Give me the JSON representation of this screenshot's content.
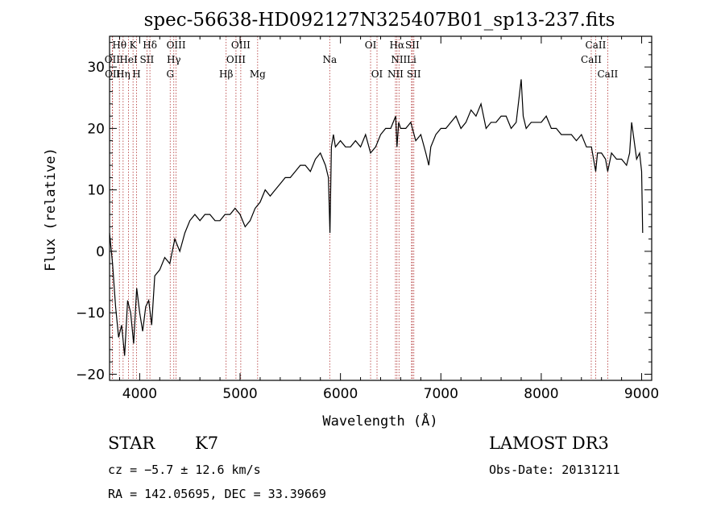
{
  "chart_data": {
    "type": "line",
    "title": "spec-56638-HD092127N325407B01_sp13-237.fits",
    "xlabel": "Wavelength (Å)",
    "ylabel": "Flux (relative)",
    "xlim": [
      3700,
      9100
    ],
    "ylim": [
      -21,
      35
    ],
    "xticks": [
      4000,
      5000,
      6000,
      7000,
      8000,
      9000
    ],
    "yticks": [
      -20,
      -10,
      0,
      10,
      20,
      30
    ],
    "xtick_labels": [
      "4000",
      "5000",
      "6000",
      "7000",
      "8000",
      "9000"
    ],
    "ytick_labels": [
      "−20",
      "−10",
      "0",
      "10",
      "20",
      "30"
    ],
    "series": [
      {
        "x": [
          3700,
          3730,
          3760,
          3790,
          3820,
          3850,
          3880,
          3910,
          3940,
          3970,
          4000,
          4030,
          4060,
          4090,
          4120,
          4150,
          4200,
          4250,
          4300,
          4350,
          4400,
          4450,
          4500,
          4550,
          4600,
          4650,
          4700,
          4750,
          4800,
          4850,
          4900,
          4950,
          5000,
          5050,
          5100,
          5150,
          5200,
          5250,
          5300,
          5350,
          5400,
          5450,
          5500,
          5550,
          5600,
          5650,
          5700,
          5750,
          5800,
          5850,
          5880,
          5895,
          5910,
          5930,
          5950,
          6000,
          6050,
          6100,
          6150,
          6200,
          6250,
          6300,
          6350,
          6400,
          6450,
          6500,
          6550,
          6563,
          6580,
          6600,
          6650,
          6700,
          6750,
          6800,
          6850,
          6880,
          6900,
          6950,
          7000,
          7050,
          7100,
          7150,
          7200,
          7250,
          7300,
          7350,
          7400,
          7450,
          7500,
          7550,
          7600,
          7650,
          7700,
          7750,
          7800,
          7820,
          7850,
          7900,
          7950,
          8000,
          8050,
          8100,
          8150,
          8200,
          8250,
          8300,
          8350,
          8400,
          8450,
          8500,
          8542,
          8560,
          8600,
          8640,
          8662,
          8700,
          8750,
          8800,
          8850,
          8880,
          8900,
          8950,
          8980,
          9000,
          9010
        ],
        "y": [
          3,
          -2,
          -9,
          -14,
          -12,
          -17,
          -8,
          -10,
          -15,
          -6,
          -10,
          -13,
          -9,
          -8,
          -12,
          -4,
          -3,
          -1,
          -2,
          2,
          0,
          3,
          5,
          6,
          5,
          6,
          6,
          5,
          5,
          6,
          6,
          7,
          6,
          4,
          5,
          7,
          8,
          10,
          9,
          10,
          11,
          12,
          12,
          13,
          14,
          14,
          13,
          15,
          16,
          14,
          12,
          3,
          17,
          19,
          17,
          18,
          17,
          17,
          18,
          17,
          19,
          16,
          17,
          19,
          20,
          20,
          22,
          17,
          21,
          20,
          20,
          21,
          18,
          19,
          16,
          14,
          17,
          19,
          20,
          20,
          21,
          22,
          20,
          21,
          23,
          22,
          24,
          20,
          21,
          21,
          22,
          22,
          20,
          21,
          28,
          22,
          20,
          21,
          21,
          21,
          22,
          20,
          20,
          19,
          19,
          19,
          18,
          19,
          17,
          17,
          13,
          16,
          16,
          15,
          13,
          16,
          15,
          15,
          14,
          16,
          21,
          15,
          16,
          13,
          3
        ]
      }
    ],
    "lines": [
      {
        "name": "Hθ",
        "wl": 3798,
        "row": 0
      },
      {
        "name": "K",
        "wl": 3934,
        "row": 0
      },
      {
        "name": "Hδ",
        "wl": 4102,
        "row": 0
      },
      {
        "name": "OIII",
        "wl": 4363,
        "row": 0
      },
      {
        "name": "OIII",
        "wl": 5007,
        "row": 0
      },
      {
        "name": "OI",
        "wl": 6300,
        "row": 0
      },
      {
        "name": "Hα",
        "wl": 6563,
        "row": 0
      },
      {
        "name": "SII",
        "wl": 6716,
        "row": 0
      },
      {
        "name": "CaII",
        "wl": 8542,
        "row": 0
      },
      {
        "name": "OII",
        "wl": 3727,
        "row": 1
      },
      {
        "name": "HeI",
        "wl": 3889,
        "row": 1
      },
      {
        "name": "SII",
        "wl": 4072,
        "row": 1
      },
      {
        "name": "Hγ",
        "wl": 4340,
        "row": 1
      },
      {
        "name": "OIII",
        "wl": 4959,
        "row": 1
      },
      {
        "name": "Na",
        "wl": 5893,
        "row": 1
      },
      {
        "name": "NII",
        "wl": 6583,
        "row": 1
      },
      {
        "name": "Li",
        "wl": 6708,
        "row": 1
      },
      {
        "name": "CaII",
        "wl": 8498,
        "row": 1
      },
      {
        "name": "OII",
        "wl": 3730,
        "row": 2
      },
      {
        "name": "Hη",
        "wl": 3835,
        "row": 2
      },
      {
        "name": "H",
        "wl": 3969,
        "row": 2
      },
      {
        "name": "G",
        "wl": 4304,
        "row": 2
      },
      {
        "name": "Hβ",
        "wl": 4861,
        "row": 2
      },
      {
        "name": "Mg",
        "wl": 5175,
        "row": 2
      },
      {
        "name": "OI",
        "wl": 6364,
        "row": 2
      },
      {
        "name": "NII",
        "wl": 6548,
        "row": 2
      },
      {
        "name": "SII",
        "wl": 6731,
        "row": 2
      },
      {
        "name": "CaII",
        "wl": 8662,
        "row": 2
      }
    ]
  },
  "info": {
    "object_class": "STAR",
    "subclass": "K7",
    "survey": "LAMOST DR3",
    "cz": "cz = −5.7 ± 12.6 km/s",
    "obs_date": "Obs-Date: 20131211",
    "coords": "RA = 142.05695, DEC =  33.39669"
  }
}
